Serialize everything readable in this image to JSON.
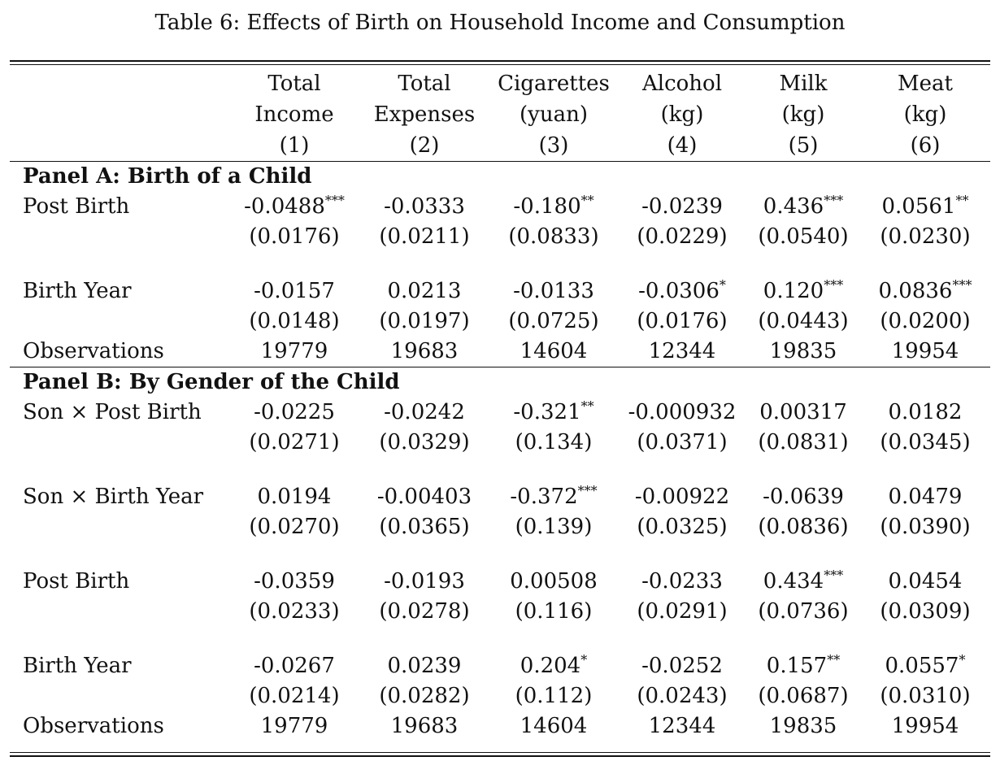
{
  "caption": "Table 6: Effects of Birth on Household Income and Consumption",
  "columns": [
    {
      "line1": "Total",
      "line2": "Income",
      "num": "(1)"
    },
    {
      "line1": "Total",
      "line2": "Expenses",
      "num": "(2)"
    },
    {
      "line1": "Cigarettes",
      "line2": "(yuan)",
      "num": "(3)"
    },
    {
      "line1": "Alcohol",
      "line2": "(kg)",
      "num": "(4)"
    },
    {
      "line1": "Milk",
      "line2": "(kg)",
      "num": "(5)"
    },
    {
      "line1": "Meat",
      "line2": "(kg)",
      "num": "(6)"
    }
  ],
  "panels": [
    {
      "title": "Panel A: Birth of a Child",
      "rows": [
        {
          "label": "Post Birth",
          "coef": [
            [
              "-0.0488",
              "***"
            ],
            [
              "-0.0333",
              ""
            ],
            [
              "-0.180",
              "**"
            ],
            [
              "-0.0239",
              ""
            ],
            [
              "0.436",
              "***"
            ],
            [
              "0.0561",
              "**"
            ]
          ],
          "se": [
            "(0.0176)",
            "(0.0211)",
            "(0.0833)",
            "(0.0229)",
            "(0.0540)",
            "(0.0230)"
          ]
        },
        {
          "label": "Birth Year",
          "coef": [
            [
              "-0.0157",
              ""
            ],
            [
              "0.0213",
              ""
            ],
            [
              "-0.0133",
              ""
            ],
            [
              "-0.0306",
              "*"
            ],
            [
              "0.120",
              "***"
            ],
            [
              "0.0836",
              "***"
            ]
          ],
          "se": [
            "(0.0148)",
            "(0.0197)",
            "(0.0725)",
            "(0.0176)",
            "(0.0443)",
            "(0.0200)"
          ]
        }
      ],
      "observations": {
        "label": "Observations",
        "values": [
          "19779",
          "19683",
          "14604",
          "12344",
          "19835",
          "19954"
        ]
      }
    },
    {
      "title": "Panel B: By Gender of the Child",
      "rows": [
        {
          "label": "Son × Post Birth",
          "coef": [
            [
              "-0.0225",
              ""
            ],
            [
              "-0.0242",
              ""
            ],
            [
              "-0.321",
              "**"
            ],
            [
              "-0.000932",
              ""
            ],
            [
              "0.00317",
              ""
            ],
            [
              "0.0182",
              ""
            ]
          ],
          "se": [
            "(0.0271)",
            "(0.0329)",
            "(0.134)",
            "(0.0371)",
            "(0.0831)",
            "(0.0345)"
          ]
        },
        {
          "label": "Son × Birth Year",
          "coef": [
            [
              "0.0194",
              ""
            ],
            [
              "-0.00403",
              ""
            ],
            [
              "-0.372",
              "***"
            ],
            [
              "-0.00922",
              ""
            ],
            [
              "-0.0639",
              ""
            ],
            [
              "0.0479",
              ""
            ]
          ],
          "se": [
            "(0.0270)",
            "(0.0365)",
            "(0.139)",
            "(0.0325)",
            "(0.0836)",
            "(0.0390)"
          ]
        },
        {
          "label": "Post Birth",
          "coef": [
            [
              "-0.0359",
              ""
            ],
            [
              "-0.0193",
              ""
            ],
            [
              "0.00508",
              ""
            ],
            [
              "-0.0233",
              ""
            ],
            [
              "0.434",
              "***"
            ],
            [
              "0.0454",
              ""
            ]
          ],
          "se": [
            "(0.0233)",
            "(0.0278)",
            "(0.116)",
            "(0.0291)",
            "(0.0736)",
            "(0.0309)"
          ]
        },
        {
          "label": "Birth Year",
          "coef": [
            [
              "-0.0267",
              ""
            ],
            [
              "0.0239",
              ""
            ],
            [
              "0.204",
              "*"
            ],
            [
              "-0.0252",
              ""
            ],
            [
              "0.157",
              "**"
            ],
            [
              "0.0557",
              "*"
            ]
          ],
          "se": [
            "(0.0214)",
            "(0.0282)",
            "(0.112)",
            "(0.0243)",
            "(0.0687)",
            "(0.0310)"
          ]
        }
      ],
      "observations": {
        "label": "Observations",
        "values": [
          "19779",
          "19683",
          "14604",
          "12344",
          "19835",
          "19954"
        ]
      }
    }
  ]
}
